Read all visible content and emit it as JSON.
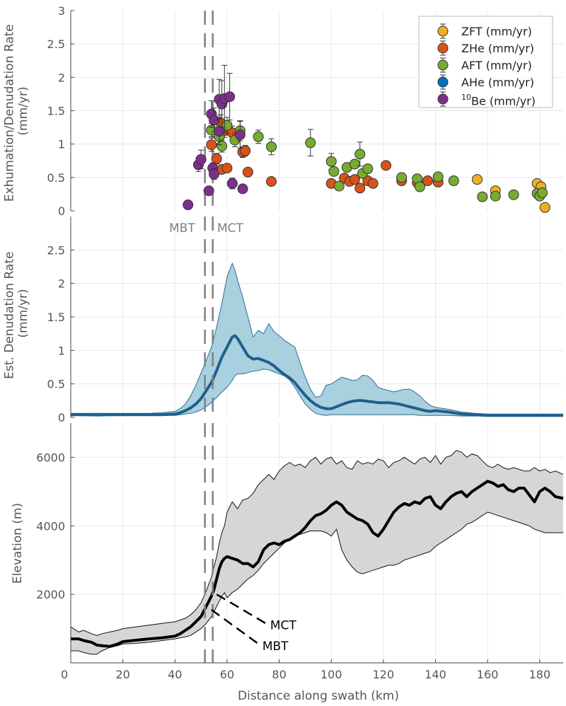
{
  "x_axis": {
    "label": "Distance along swath (km)",
    "ticks": [
      0,
      20,
      40,
      60,
      80,
      100,
      120,
      140,
      160,
      180
    ],
    "tick_labels": [
      "0",
      "20",
      "40",
      "60",
      "80",
      "100",
      "120",
      "140",
      "160",
      "180"
    ],
    "range": [
      0,
      189
    ]
  },
  "fault_labels": {
    "mbt": "MBT",
    "mct": "MCT"
  },
  "colors": {
    "ZFT": "#EDB120",
    "ZHe": "#D95319",
    "AFT": "#77AC30",
    "AHe": "#0072BD",
    "Be10": "#7E2F8E",
    "band": "#A9D0DF",
    "band_edge": "#2E6E96",
    "median": "#1F5F8B",
    "relief": "#D5D6D8",
    "grid": "#E8E8E8",
    "fault": "#808080"
  },
  "chart_data": [
    {
      "type": "scatter",
      "ylabel": "Exhumation/Denudation Rate (mm/yr)",
      "ylabel_lines": [
        "Exhumation/Denudation Rate",
        "(mm/yr)"
      ],
      "ylim": [
        0,
        3
      ],
      "yticks": [
        0,
        0.5,
        1,
        1.5,
        2,
        2.5,
        3
      ],
      "ytick_labels": [
        "0",
        "0.5",
        "1",
        "1.5",
        "2",
        "2.5",
        "3"
      ],
      "faults_km": [
        51.5,
        54.5
      ],
      "legend": [
        {
          "key": "ZFT",
          "label": "ZFT (mm/yr)"
        },
        {
          "key": "ZHe",
          "label": "ZHe (mm/yr)"
        },
        {
          "key": "AFT",
          "label": "AFT (mm/yr)"
        },
        {
          "key": "AHe",
          "label": "AHe (mm/yr)"
        },
        {
          "key": "Be10",
          "sup": "10",
          "label": "Be (mm/yr)"
        }
      ],
      "series": [
        {
          "name": "ZFT",
          "points": [
            {
              "x": 156,
              "y": 0.47,
              "err": 0.04
            },
            {
              "x": 163,
              "y": 0.3,
              "err": 0.03
            },
            {
              "x": 179,
              "y": 0.41,
              "err": 0.04
            },
            {
              "x": 180.5,
              "y": 0.36,
              "err": 0.03
            },
            {
              "x": 182,
              "y": 0.05,
              "err": 0.02
            }
          ]
        },
        {
          "name": "ZHe",
          "points": [
            {
              "x": 54,
              "y": 0.99,
              "err": 0.1
            },
            {
              "x": 56,
              "y": 0.78,
              "err": 0.08
            },
            {
              "x": 57.5,
              "y": 1.32,
              "err": 0.12
            },
            {
              "x": 58,
              "y": 0.62,
              "err": 0.06
            },
            {
              "x": 59,
              "y": 1.2,
              "err": 0.1
            },
            {
              "x": 60,
              "y": 0.64,
              "err": 0.06
            },
            {
              "x": 62,
              "y": 1.17,
              "err": 0.1
            },
            {
              "x": 66,
              "y": 0.88,
              "err": 0.08
            },
            {
              "x": 67,
              "y": 0.9,
              "err": 0.08
            },
            {
              "x": 68,
              "y": 0.58,
              "err": 0.05
            },
            {
              "x": 77,
              "y": 0.44,
              "err": 0.04
            },
            {
              "x": 100,
              "y": 0.41,
              "err": 0.04
            },
            {
              "x": 105,
              "y": 0.49,
              "err": 0.04
            },
            {
              "x": 107,
              "y": 0.44,
              "err": 0.04
            },
            {
              "x": 109,
              "y": 0.47,
              "err": 0.04
            },
            {
              "x": 111,
              "y": 0.34,
              "err": 0.03
            },
            {
              "x": 114,
              "y": 0.45,
              "err": 0.04
            },
            {
              "x": 116,
              "y": 0.41,
              "err": 0.04
            },
            {
              "x": 121,
              "y": 0.68,
              "err": 0.05
            },
            {
              "x": 127,
              "y": 0.45,
              "err": 0.04
            },
            {
              "x": 133,
              "y": 0.42,
              "err": 0.04
            },
            {
              "x": 137,
              "y": 0.45,
              "err": 0.04
            },
            {
              "x": 141,
              "y": 0.43,
              "err": 0.04
            }
          ]
        },
        {
          "name": "AFT",
          "points": [
            {
              "x": 54,
              "y": 1.21,
              "err": 0.1
            },
            {
              "x": 57,
              "y": 1.11,
              "err": 0.1
            },
            {
              "x": 58,
              "y": 0.97,
              "err": 0.09
            },
            {
              "x": 60,
              "y": 1.28,
              "err": 0.12
            },
            {
              "x": 63,
              "y": 1.06,
              "err": 0.1
            },
            {
              "x": 65,
              "y": 1.2,
              "err": 0.15
            },
            {
              "x": 72,
              "y": 1.11,
              "err": 0.1
            },
            {
              "x": 77,
              "y": 0.96,
              "err": 0.12
            },
            {
              "x": 92,
              "y": 1.02,
              "err": 0.2
            },
            {
              "x": 100,
              "y": 0.74,
              "err": 0.12
            },
            {
              "x": 101,
              "y": 0.59,
              "err": 0.06
            },
            {
              "x": 103,
              "y": 0.37,
              "err": 0.04
            },
            {
              "x": 106,
              "y": 0.65,
              "err": 0.06
            },
            {
              "x": 109,
              "y": 0.7,
              "err": 0.06
            },
            {
              "x": 111,
              "y": 0.85,
              "err": 0.18
            },
            {
              "x": 112,
              "y": 0.56,
              "err": 0.06
            },
            {
              "x": 114,
              "y": 0.63,
              "err": 0.06
            },
            {
              "x": 127,
              "y": 0.5,
              "err": 0.05
            },
            {
              "x": 133,
              "y": 0.48,
              "err": 0.05
            },
            {
              "x": 134,
              "y": 0.36,
              "err": 0.04
            },
            {
              "x": 141,
              "y": 0.51,
              "err": 0.05
            },
            {
              "x": 147,
              "y": 0.45,
              "err": 0.05
            },
            {
              "x": 158,
              "y": 0.21,
              "err": 0.03
            },
            {
              "x": 163,
              "y": 0.22,
              "err": 0.03
            },
            {
              "x": 170,
              "y": 0.24,
              "err": 0.03
            },
            {
              "x": 179,
              "y": 0.26,
              "err": 0.03
            },
            {
              "x": 180,
              "y": 0.22,
              "err": 0.03
            },
            {
              "x": 181,
              "y": 0.27,
              "err": 0.03
            }
          ]
        },
        {
          "name": "AHe",
          "points": []
        },
        {
          "name": "Be10",
          "points": [
            {
              "x": 45,
              "y": 0.09,
              "err": 0.02
            },
            {
              "x": 49,
              "y": 0.69,
              "err": 0.1
            },
            {
              "x": 50,
              "y": 0.77,
              "err": 0.14
            },
            {
              "x": 53,
              "y": 0.3,
              "err": 0.04
            },
            {
              "x": 54,
              "y": 1.45,
              "err": 0.2
            },
            {
              "x": 54.5,
              "y": 0.64,
              "err": 0.08
            },
            {
              "x": 55,
              "y": 0.55,
              "err": 0.08
            },
            {
              "x": 55,
              "y": 1.36,
              "err": 0.18
            },
            {
              "x": 57,
              "y": 1.19,
              "err": 0.2
            },
            {
              "x": 57,
              "y": 1.67,
              "err": 0.3
            },
            {
              "x": 58,
              "y": 1.6,
              "err": 0.35
            },
            {
              "x": 59,
              "y": 1.68,
              "err": 0.5
            },
            {
              "x": 61,
              "y": 1.71,
              "err": 0.35
            },
            {
              "x": 62,
              "y": 0.41,
              "err": 0.08
            },
            {
              "x": 65,
              "y": 1.14,
              "err": 0.2
            },
            {
              "x": 66,
              "y": 0.33,
              "err": 0.05
            }
          ]
        }
      ]
    },
    {
      "type": "area",
      "ylabel": "Est. Denudation Rate (mm/yr)",
      "ylabel_lines": [
        "Est. Denudation Rate",
        "(mm/yr)"
      ],
      "ylim": [
        0,
        3
      ],
      "yticks": [
        0,
        0.5,
        1,
        1.5,
        2,
        2.5
      ],
      "ytick_labels": [
        "0",
        "0.5",
        "1",
        "1.5",
        "2",
        "2.5"
      ],
      "faults_km": [
        51.5,
        54.5
      ],
      "x": [
        0,
        10,
        20,
        30,
        35,
        40,
        42,
        44,
        46,
        48,
        50,
        52,
        54,
        56,
        58,
        60,
        62,
        63,
        64,
        66,
        68,
        70,
        72,
        74,
        76,
        78,
        80,
        82,
        84,
        86,
        88,
        90,
        92,
        94,
        96,
        98,
        100,
        102,
        104,
        106,
        108,
        110,
        112,
        114,
        116,
        118,
        120,
        122,
        124,
        126,
        128,
        130,
        132,
        134,
        136,
        138,
        140,
        145,
        150,
        155,
        160,
        165,
        170,
        175,
        180,
        185,
        189
      ],
      "median": [
        0.04,
        0.04,
        0.04,
        0.04,
        0.04,
        0.05,
        0.07,
        0.1,
        0.14,
        0.2,
        0.28,
        0.4,
        0.52,
        0.7,
        0.9,
        1.05,
        1.2,
        1.22,
        1.18,
        1.05,
        0.92,
        0.87,
        0.88,
        0.85,
        0.82,
        0.77,
        0.7,
        0.64,
        0.59,
        0.52,
        0.42,
        0.33,
        0.25,
        0.19,
        0.15,
        0.13,
        0.13,
        0.16,
        0.19,
        0.22,
        0.24,
        0.25,
        0.25,
        0.24,
        0.23,
        0.22,
        0.22,
        0.22,
        0.21,
        0.2,
        0.18,
        0.16,
        0.14,
        0.12,
        0.1,
        0.09,
        0.1,
        0.08,
        0.05,
        0.04,
        0.03,
        0.03,
        0.03,
        0.03,
        0.03,
        0.03,
        0.03
      ],
      "lower": [
        0.03,
        0.02,
        0.03,
        0.03,
        0.03,
        0.03,
        0.04,
        0.05,
        0.06,
        0.08,
        0.11,
        0.16,
        0.22,
        0.3,
        0.38,
        0.45,
        0.55,
        0.62,
        0.65,
        0.65,
        0.67,
        0.69,
        0.7,
        0.72,
        0.71,
        0.68,
        0.65,
        0.62,
        0.56,
        0.45,
        0.32,
        0.2,
        0.12,
        0.06,
        0.04,
        0.03,
        0.04,
        0.04,
        0.04,
        0.04,
        0.04,
        0.04,
        0.04,
        0.04,
        0.04,
        0.04,
        0.04,
        0.04,
        0.04,
        0.04,
        0.04,
        0.04,
        0.04,
        0.03,
        0.03,
        0.03,
        0.03,
        0.03,
        0.02,
        0.02,
        0.02,
        0.02,
        0.02,
        0.02,
        0.02,
        0.02,
        0.02
      ],
      "upper": [
        0.06,
        0.06,
        0.06,
        0.06,
        0.07,
        0.09,
        0.13,
        0.2,
        0.32,
        0.48,
        0.66,
        0.85,
        1.05,
        1.35,
        1.7,
        2.1,
        2.3,
        2.2,
        2.05,
        1.8,
        1.5,
        1.2,
        1.3,
        1.25,
        1.4,
        1.28,
        1.22,
        1.15,
        1.1,
        1.05,
        0.82,
        0.6,
        0.42,
        0.3,
        0.32,
        0.48,
        0.5,
        0.55,
        0.6,
        0.58,
        0.55,
        0.56,
        0.63,
        0.62,
        0.55,
        0.45,
        0.42,
        0.4,
        0.38,
        0.4,
        0.42,
        0.42,
        0.38,
        0.32,
        0.24,
        0.18,
        0.15,
        0.12,
        0.08,
        0.06,
        0.05,
        0.05,
        0.05,
        0.05,
        0.05,
        0.05,
        0.05
      ]
    },
    {
      "type": "area",
      "ylabel": "Elevation (m)",
      "ylim": [
        0,
        7000
      ],
      "yticks": [
        2000,
        4000,
        6000
      ],
      "ytick_labels": [
        "2000",
        "4000",
        "6000"
      ],
      "faults_km": [
        51.5,
        54.5
      ],
      "fault_annotations": [
        {
          "label": "MCT",
          "from_km": 56,
          "from_elev": 2000,
          "to_km": 76,
          "to_elev": 1100
        },
        {
          "label": "MBT",
          "from_km": 54,
          "from_elev": 1550,
          "to_km": 73,
          "to_elev": 500
        }
      ],
      "x": [
        0,
        3,
        5,
        8,
        10,
        12,
        15,
        18,
        20,
        25,
        30,
        35,
        40,
        42,
        44,
        46,
        48,
        50,
        52,
        54,
        55,
        56,
        57,
        58,
        59,
        60,
        62,
        64,
        66,
        68,
        70,
        72,
        74,
        76,
        78,
        80,
        82,
        84,
        86,
        88,
        90,
        92,
        94,
        96,
        98,
        100,
        102,
        104,
        106,
        108,
        110,
        112,
        114,
        116,
        118,
        120,
        122,
        124,
        126,
        128,
        130,
        132,
        134,
        136,
        138,
        140,
        142,
        144,
        146,
        148,
        150,
        152,
        154,
        156,
        158,
        160,
        162,
        164,
        166,
        168,
        170,
        172,
        174,
        176,
        178,
        180,
        182,
        184,
        186,
        189
      ],
      "median": [
        700,
        700,
        650,
        600,
        520,
        500,
        480,
        550,
        620,
        660,
        700,
        730,
        780,
        850,
        950,
        1050,
        1200,
        1350,
        1650,
        1950,
        2150,
        2450,
        2750,
        2950,
        3050,
        3100,
        3050,
        3000,
        2900,
        2900,
        2800,
        2950,
        3300,
        3450,
        3500,
        3450,
        3550,
        3600,
        3700,
        3800,
        3950,
        4150,
        4300,
        4350,
        4450,
        4600,
        4700,
        4600,
        4400,
        4300,
        4200,
        4150,
        4050,
        3800,
        3700,
        3900,
        4150,
        4400,
        4550,
        4650,
        4600,
        4700,
        4650,
        4800,
        4850,
        4600,
        4500,
        4700,
        4850,
        4950,
        5000,
        4850,
        5000,
        5100,
        5200,
        5300,
        5250,
        5150,
        5200,
        5050,
        5000,
        5100,
        5100,
        4900,
        4700,
        5000,
        5100,
        5000,
        4850,
        4800
      ],
      "lower": [
        350,
        350,
        300,
        250,
        250,
        350,
        450,
        500,
        550,
        570,
        600,
        650,
        700,
        730,
        760,
        800,
        900,
        1000,
        1150,
        1350,
        1500,
        1650,
        1800,
        1950,
        2050,
        1900,
        2050,
        2150,
        2300,
        2450,
        2550,
        2700,
        2900,
        3050,
        3200,
        3350,
        3500,
        3600,
        3700,
        3750,
        3800,
        3850,
        3850,
        3850,
        3800,
        3700,
        3900,
        3300,
        3000,
        2800,
        2650,
        2600,
        2650,
        2700,
        2750,
        2800,
        2850,
        2850,
        2900,
        3000,
        3050,
        3100,
        3150,
        3200,
        3250,
        3400,
        3500,
        3600,
        3700,
        3800,
        3900,
        4050,
        4100,
        4200,
        4300,
        4400,
        4350,
        4300,
        4250,
        4200,
        4150,
        4100,
        4050,
        4000,
        3900,
        3850,
        3800,
        3800,
        3800,
        3800
      ],
      "upper": [
        1050,
        900,
        950,
        850,
        800,
        850,
        900,
        950,
        1000,
        1050,
        1100,
        1150,
        1200,
        1250,
        1300,
        1400,
        1550,
        1750,
        2100,
        2500,
        2800,
        3100,
        3500,
        3800,
        4000,
        4400,
        4700,
        4500,
        4750,
        4800,
        4950,
        5200,
        5350,
        5500,
        5350,
        5600,
        5750,
        5850,
        5750,
        5800,
        5700,
        5900,
        6000,
        5800,
        5950,
        6000,
        5800,
        5900,
        5700,
        5650,
        5900,
        5800,
        5850,
        5800,
        5950,
        5900,
        5700,
        5850,
        5900,
        6000,
        5900,
        5800,
        5950,
        6000,
        5850,
        6050,
        5800,
        6000,
        6050,
        6200,
        6150,
        6000,
        6100,
        6050,
        5900,
        5750,
        5700,
        5800,
        5700,
        5650,
        5700,
        5650,
        5600,
        5600,
        5700,
        5600,
        5650,
        5550,
        5600,
        5500
      ]
    }
  ]
}
